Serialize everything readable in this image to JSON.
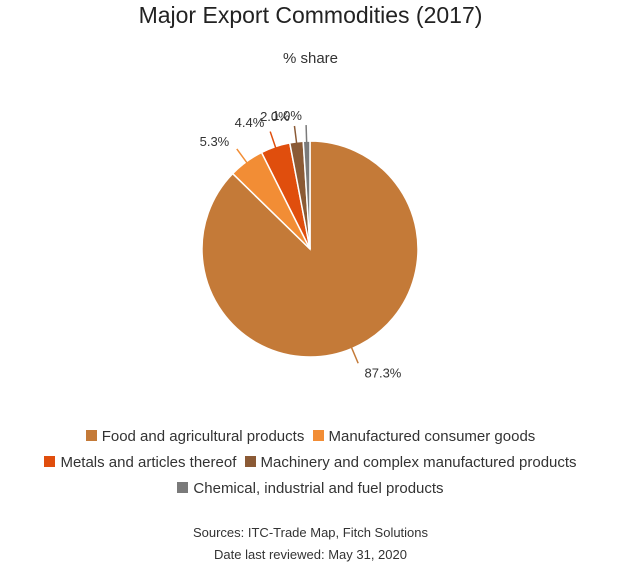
{
  "chart_data": {
    "type": "pie",
    "title": "Major Export Commodities (2017)",
    "subtitle": "% share",
    "slices": [
      {
        "label": "Food and agricultural products",
        "value": 87.3,
        "value_label": "87.3%",
        "color": "#c47a38"
      },
      {
        "label": "Manufactured consumer goods",
        "value": 5.3,
        "value_label": "5.3%",
        "color": "#f28d35"
      },
      {
        "label": "Metals and articles thereof",
        "value": 4.4,
        "value_label": "4.4%",
        "color": "#e04e0d"
      },
      {
        "label": "Machinery and complex manufactured products",
        "value": 2.0,
        "value_label": "2.0%",
        "color": "#8b5a35"
      },
      {
        "label": "Chemical, industrial and fuel products",
        "value": 1.0,
        "value_label": "1.0%",
        "color": "#7a7a7a"
      }
    ],
    "legend_position": "bottom"
  },
  "footer": {
    "sources": "Sources: ITC-Trade Map, Fitch Solutions",
    "reviewed": "Date last reviewed: May 31, 2020"
  }
}
